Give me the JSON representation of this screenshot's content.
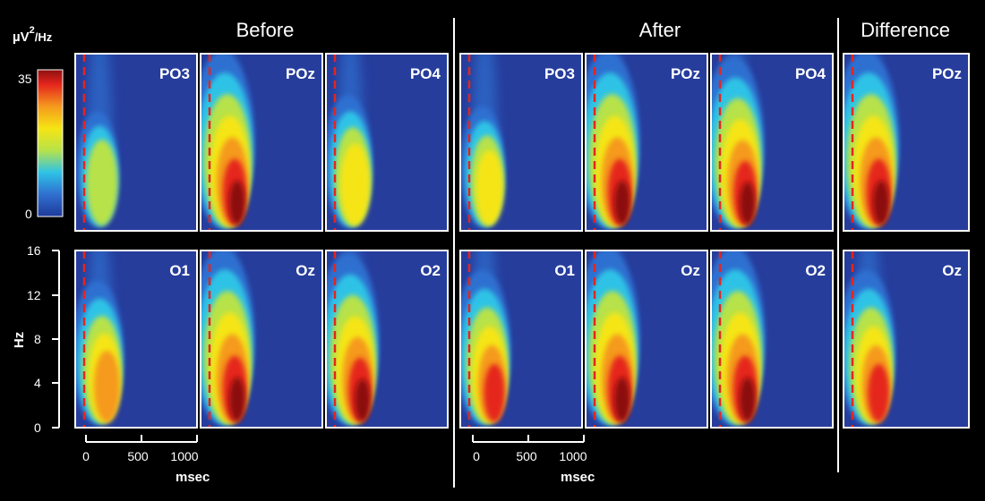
{
  "chart_data": {
    "type": "heatmap",
    "title": "",
    "groups": [
      {
        "title": "Before",
        "panels_top": [
          "PO3",
          "POz",
          "PO4"
        ],
        "panels_bottom": [
          "O1",
          "Oz",
          "O2"
        ]
      },
      {
        "title": "After",
        "panels_top": [
          "PO3",
          "POz",
          "PO4"
        ],
        "panels_bottom": [
          "O1",
          "Oz",
          "O2"
        ]
      },
      {
        "title": "Difference",
        "panels_top": [
          "POz"
        ],
        "panels_bottom": [
          "Oz"
        ]
      }
    ],
    "colorbar": {
      "unit_base": "µV",
      "unit_exp": "2",
      "unit_tail": "/Hz",
      "min": 0,
      "max": 35,
      "tick_labels": [
        "35",
        "0"
      ]
    },
    "y_axis": {
      "label": "Hz",
      "min": 0,
      "max": 16,
      "tick_labels": [
        "16",
        "12",
        "8",
        "4",
        "0"
      ]
    },
    "x_axis": {
      "label": "msec",
      "min": -50,
      "max": 1000,
      "tick_labels": [
        "0",
        "500",
        "1000"
      ]
    },
    "stimulus_onset_ms": 0,
    "peaks": {
      "Before": {
        "PO3": 0.45,
        "POz": 1.0,
        "PO4": 0.6,
        "O1": 0.7,
        "Oz": 1.0,
        "O2": 0.95
      },
      "After": {
        "PO3": 0.5,
        "POz": 1.0,
        "PO4": 0.95,
        "O1": 0.8,
        "Oz": 1.0,
        "O2": 1.0
      },
      "Difference": {
        "POz": 1.0,
        "Oz": 0.8
      }
    }
  }
}
